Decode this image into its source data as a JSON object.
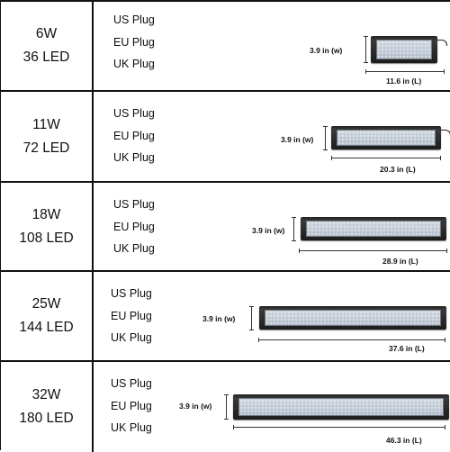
{
  "rows": [
    {
      "watt": "6W",
      "led": "36 LED",
      "plugs": [
        "US Plug",
        "EU Plug",
        "UK Plug"
      ],
      "width_label": "3.9 in (w)",
      "length_label": "11.6 in (L)"
    },
    {
      "watt": "11W",
      "led": "72 LED",
      "plugs": [
        "US Plug",
        "EU Plug",
        "UK Plug"
      ],
      "width_label": "3.9 in (w)",
      "length_label": "20.3 in (L)"
    },
    {
      "watt": "18W",
      "led": "108 LED",
      "plugs": [
        "US Plug",
        "EU Plug",
        "UK Plug"
      ],
      "width_label": "3.9 in (w)",
      "length_label": "28.9 in (L)"
    },
    {
      "watt": "25W",
      "led": "144 LED",
      "plugs": [
        "US Plug",
        "EU Plug",
        "UK Plug"
      ],
      "width_label": "3.9 in (w)",
      "length_label": "37.6 in (L)"
    },
    {
      "watt": "32W",
      "led": "180 LED",
      "plugs": [
        "US Plug",
        "EU Plug",
        "UK Plug"
      ],
      "width_label": "3.9 in (w)",
      "length_label": "46.3 in (L)"
    }
  ]
}
